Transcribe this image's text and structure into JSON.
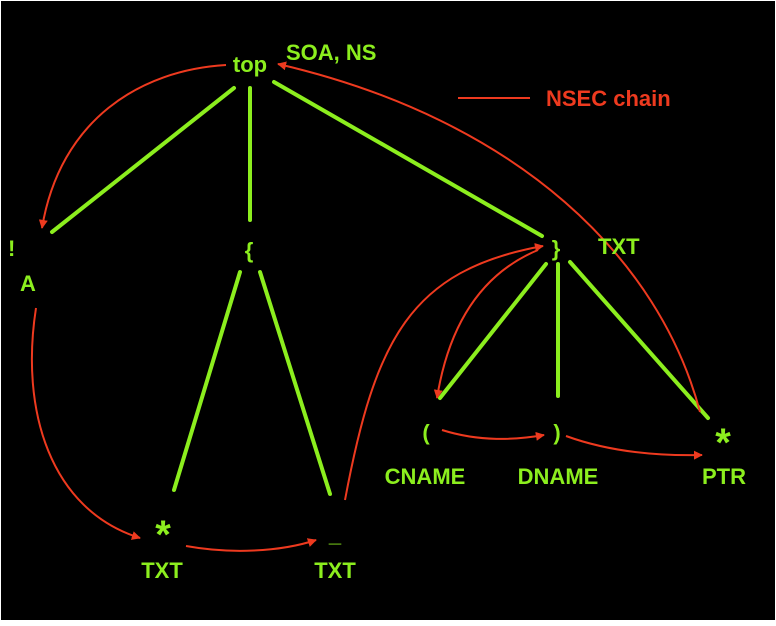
{
  "colors": {
    "background": "#000000",
    "frame": "#ffffff",
    "tree_edge": "#8cee1e",
    "label": "#8cee1e",
    "nsec_chain": "#ee3a1f"
  },
  "legend": {
    "label": "NSEC chain"
  },
  "nodes": {
    "top": {
      "name": "top",
      "records": "SOA, NS"
    },
    "bang": {
      "name": "!",
      "records": "A"
    },
    "lbrace": {
      "name": "{",
      "records": ""
    },
    "rbrace": {
      "name": "}",
      "records": "TXT"
    },
    "star1": {
      "name": "*",
      "records": "TXT"
    },
    "underscore": {
      "name": "_",
      "records": "TXT"
    },
    "lparen": {
      "name": "(",
      "records": "CNAME"
    },
    "rparen": {
      "name": ")",
      "records": "DNAME"
    },
    "star2": {
      "name": "*",
      "records": "PTR"
    }
  },
  "tree_edges": [
    [
      "top",
      "bang"
    ],
    [
      "top",
      "lbrace"
    ],
    [
      "top",
      "rbrace"
    ],
    [
      "lbrace",
      "star1"
    ],
    [
      "lbrace",
      "underscore"
    ],
    [
      "rbrace",
      "lparen"
    ],
    [
      "rbrace",
      "rparen"
    ],
    [
      "rbrace",
      "star2"
    ]
  ],
  "nsec_chain": [
    "top",
    "bang",
    "star1",
    "underscore",
    "rbrace",
    "lparen",
    "rparen",
    "star2",
    "top"
  ]
}
